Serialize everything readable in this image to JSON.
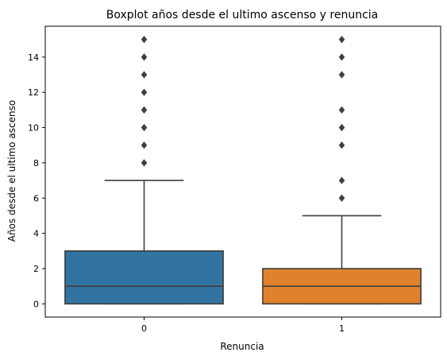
{
  "chart_data": {
    "type": "boxplot",
    "title": "Boxplot años desde el ultimo ascenso y renuncia",
    "xlabel": "Renuncia",
    "ylabel": "Años desde el ultimo ascenso",
    "categories": [
      "0",
      "1"
    ],
    "ylim": [
      -0.75,
      15.75
    ],
    "yticks": [
      0,
      2,
      4,
      6,
      8,
      10,
      12,
      14
    ],
    "ytick_labels": [
      "0",
      "2",
      "4",
      "6",
      "8",
      "10",
      "12",
      "14"
    ],
    "grid": false,
    "line_color": "#3f3f3f",
    "boxes": [
      {
        "category": "0",
        "color": "#3274a1",
        "whisker_low": 0,
        "q1": 0,
        "median": 1,
        "q3": 3,
        "whisker_high": 7,
        "outliers": [
          8,
          9,
          10,
          11,
          12,
          13,
          14,
          15
        ]
      },
      {
        "category": "1",
        "color": "#e1812c",
        "whisker_low": 0,
        "q1": 0,
        "median": 1,
        "q3": 2,
        "whisker_high": 5,
        "outliers": [
          6,
          7,
          9,
          10,
          11,
          13,
          14,
          15
        ]
      }
    ]
  }
}
